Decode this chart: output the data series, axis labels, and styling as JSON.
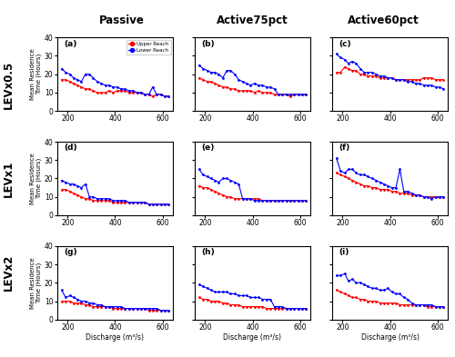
{
  "col_titles": [
    "Passive",
    "Active75pct",
    "Active60pct"
  ],
  "row_labels": [
    "LEVx0.5",
    "LEVx1",
    "LEVx2"
  ],
  "subplot_labels": [
    [
      "(a)",
      "(b)",
      "(c)"
    ],
    [
      "(d)",
      "(e)",
      "(f)"
    ],
    [
      "(g)",
      "(h)",
      "(i)"
    ]
  ],
  "xlabel": "Discharge (m³/s)",
  "ylabel": "Mean Residence\nTime (Hours)",
  "upper_reach_color": "#FF0000",
  "lower_reach_color": "#0000FF",
  "legend_labels": [
    "Upper Reach",
    "Lower Reach"
  ],
  "ylim": [
    0,
    40
  ],
  "yticks": [
    0,
    10,
    20,
    30,
    40
  ],
  "xlim": [
    155,
    645
  ],
  "xticks": [
    200,
    400,
    600
  ],
  "data": {
    "passive_lev05": {
      "x": [
        175,
        192,
        210,
        225,
        242,
        258,
        275,
        292,
        308,
        325,
        342,
        358,
        375,
        392,
        408,
        425,
        442,
        458,
        475,
        492,
        508,
        525,
        542,
        558,
        575,
        592,
        608,
        625
      ],
      "upper": [
        17,
        17,
        16,
        15,
        14,
        13,
        12,
        12,
        11,
        10,
        10,
        10,
        11,
        10,
        11,
        11,
        11,
        10,
        10,
        10,
        10,
        9,
        9,
        8,
        9,
        9,
        8,
        8
      ],
      "lower": [
        23,
        21,
        20,
        18,
        17,
        16,
        20,
        20,
        18,
        16,
        15,
        14,
        14,
        13,
        13,
        12,
        12,
        11,
        11,
        10,
        10,
        9,
        9,
        13,
        9,
        9,
        8,
        8
      ]
    },
    "active75_lev05": {
      "x": [
        175,
        192,
        210,
        225,
        242,
        258,
        275,
        292,
        308,
        325,
        342,
        358,
        375,
        392,
        408,
        425,
        442,
        458,
        475,
        492,
        508,
        525,
        542,
        558,
        575,
        592,
        608,
        625
      ],
      "upper": [
        18,
        17,
        16,
        16,
        15,
        14,
        13,
        13,
        12,
        12,
        11,
        11,
        11,
        11,
        10,
        11,
        10,
        10,
        10,
        9,
        9,
        9,
        9,
        8,
        9,
        9,
        9,
        9
      ],
      "lower": [
        25,
        23,
        22,
        21,
        21,
        20,
        18,
        22,
        22,
        20,
        17,
        16,
        15,
        14,
        15,
        14,
        14,
        13,
        13,
        12,
        9,
        9,
        9,
        9,
        9,
        9,
        9,
        9
      ]
    },
    "active60_lev05": {
      "x": [
        175,
        192,
        210,
        225,
        242,
        258,
        275,
        292,
        308,
        325,
        342,
        358,
        375,
        392,
        408,
        425,
        442,
        458,
        475,
        492,
        508,
        525,
        542,
        558,
        575,
        592,
        608,
        625
      ],
      "upper": [
        21,
        21,
        24,
        23,
        22,
        22,
        20,
        20,
        19,
        19,
        19,
        18,
        18,
        18,
        18,
        17,
        17,
        17,
        17,
        17,
        17,
        17,
        18,
        18,
        18,
        17,
        17,
        17
      ],
      "lower": [
        31,
        29,
        28,
        26,
        27,
        26,
        23,
        21,
        21,
        21,
        20,
        19,
        19,
        18,
        18,
        17,
        17,
        17,
        16,
        16,
        15,
        15,
        14,
        14,
        14,
        13,
        13,
        12
      ]
    },
    "passive_lev1": {
      "x": [
        175,
        192,
        210,
        225,
        242,
        258,
        275,
        292,
        308,
        325,
        342,
        358,
        375,
        392,
        408,
        425,
        442,
        458,
        475,
        492,
        508,
        525,
        542,
        558,
        575,
        592,
        608,
        625
      ],
      "upper": [
        14,
        14,
        13,
        12,
        11,
        10,
        9,
        9,
        8,
        8,
        8,
        8,
        8,
        7,
        7,
        7,
        7,
        7,
        7,
        7,
        7,
        7,
        6,
        6,
        6,
        6,
        6,
        6
      ],
      "lower": [
        19,
        18,
        17,
        17,
        16,
        15,
        17,
        10,
        10,
        9,
        9,
        9,
        9,
        8,
        8,
        8,
        8,
        7,
        7,
        7,
        7,
        7,
        6,
        6,
        6,
        6,
        6,
        6
      ]
    },
    "active75_lev1": {
      "x": [
        175,
        192,
        210,
        225,
        242,
        258,
        275,
        292,
        308,
        325,
        342,
        358,
        375,
        392,
        408,
        425,
        442,
        458,
        475,
        492,
        508,
        525,
        542,
        558,
        575,
        592,
        608,
        625
      ],
      "upper": [
        16,
        15,
        15,
        14,
        13,
        12,
        11,
        10,
        10,
        9,
        9,
        9,
        9,
        9,
        9,
        9,
        8,
        8,
        8,
        8,
        8,
        8,
        8,
        8,
        8,
        8,
        8,
        8
      ],
      "lower": [
        25,
        22,
        21,
        20,
        19,
        18,
        20,
        20,
        19,
        18,
        17,
        9,
        9,
        9,
        8,
        8,
        8,
        8,
        8,
        8,
        8,
        8,
        8,
        8,
        8,
        8,
        8,
        8
      ]
    },
    "active60_lev1": {
      "x": [
        175,
        192,
        210,
        225,
        242,
        258,
        275,
        292,
        308,
        325,
        342,
        358,
        375,
        392,
        408,
        425,
        442,
        458,
        475,
        492,
        508,
        525,
        542,
        558,
        575,
        592,
        608,
        625
      ],
      "upper": [
        23,
        22,
        21,
        20,
        19,
        18,
        17,
        16,
        16,
        15,
        15,
        14,
        14,
        14,
        13,
        13,
        12,
        12,
        12,
        11,
        11,
        11,
        10,
        10,
        10,
        10,
        10,
        10
      ],
      "lower": [
        31,
        24,
        23,
        25,
        25,
        23,
        22,
        22,
        21,
        20,
        19,
        18,
        17,
        16,
        15,
        15,
        25,
        13,
        13,
        12,
        11,
        11,
        10,
        10,
        9,
        10,
        10,
        10
      ]
    },
    "passive_lev2": {
      "x": [
        175,
        192,
        210,
        225,
        242,
        258,
        275,
        292,
        308,
        325,
        342,
        358,
        375,
        392,
        408,
        425,
        442,
        458,
        475,
        492,
        508,
        525,
        542,
        558,
        575,
        592,
        608,
        625
      ],
      "upper": [
        10,
        10,
        10,
        9,
        9,
        9,
        8,
        8,
        7,
        7,
        7,
        7,
        7,
        6,
        6,
        6,
        6,
        6,
        6,
        6,
        6,
        6,
        5,
        5,
        5,
        5,
        5,
        5
      ],
      "lower": [
        16,
        12,
        13,
        12,
        11,
        10,
        10,
        9,
        9,
        8,
        8,
        7,
        7,
        7,
        7,
        7,
        6,
        6,
        6,
        6,
        6,
        6,
        6,
        6,
        6,
        5,
        5,
        5
      ]
    },
    "active75_lev2": {
      "x": [
        175,
        192,
        210,
        225,
        242,
        258,
        275,
        292,
        308,
        325,
        342,
        358,
        375,
        392,
        408,
        425,
        442,
        458,
        475,
        492,
        508,
        525,
        542,
        558,
        575,
        592,
        608,
        625
      ],
      "upper": [
        12,
        11,
        11,
        10,
        10,
        10,
        9,
        9,
        8,
        8,
        8,
        7,
        7,
        7,
        7,
        7,
        7,
        6,
        6,
        6,
        6,
        6,
        6,
        6,
        6,
        6,
        6,
        6
      ],
      "lower": [
        19,
        18,
        17,
        16,
        15,
        15,
        15,
        15,
        14,
        14,
        13,
        13,
        13,
        12,
        12,
        12,
        11,
        11,
        11,
        7,
        7,
        7,
        6,
        6,
        6,
        6,
        6,
        6
      ]
    },
    "active60_lev2": {
      "x": [
        175,
        192,
        210,
        225,
        242,
        258,
        275,
        292,
        308,
        325,
        342,
        358,
        375,
        392,
        408,
        425,
        442,
        458,
        475,
        492,
        508,
        525,
        542,
        558,
        575,
        592,
        608,
        625
      ],
      "upper": [
        16,
        15,
        14,
        13,
        12,
        12,
        11,
        11,
        10,
        10,
        10,
        9,
        9,
        9,
        9,
        9,
        8,
        8,
        8,
        8,
        8,
        8,
        8,
        7,
        7,
        7,
        7,
        7
      ],
      "lower": [
        24,
        24,
        25,
        21,
        22,
        20,
        20,
        19,
        18,
        17,
        17,
        16,
        16,
        17,
        15,
        14,
        14,
        12,
        11,
        9,
        8,
        8,
        8,
        8,
        8,
        7,
        7,
        7
      ]
    }
  }
}
